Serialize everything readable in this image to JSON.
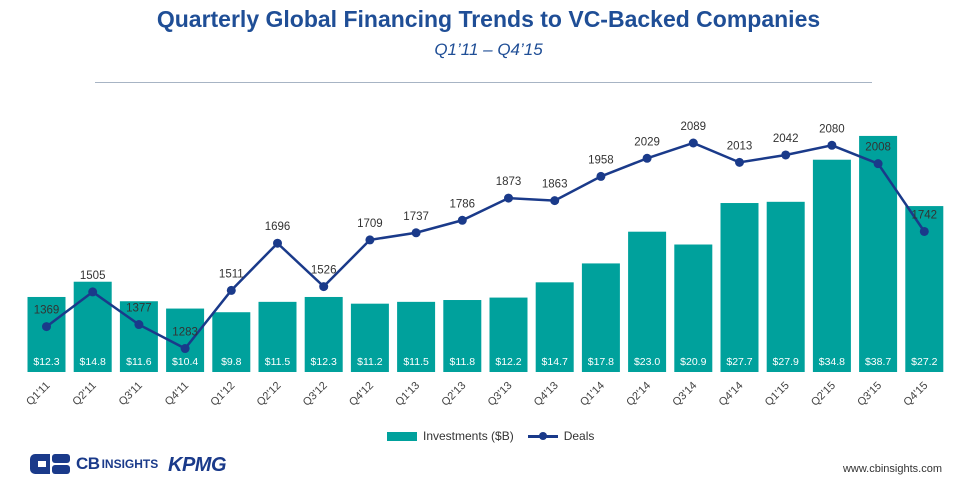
{
  "header": {
    "title": "Quarterly Global Financing Trends to VC-Backed Companies",
    "subtitle": "Q1’11 – Q4’15"
  },
  "chart_data": {
    "type": "bar",
    "title": "Quarterly Global Financing Trends to VC-Backed Companies",
    "subtitle": "Q1’11 – Q4’15",
    "categories": [
      "Q1'11",
      "Q2'11",
      "Q3'11",
      "Q4'11",
      "Q1'12",
      "Q2'12",
      "Q3'12",
      "Q4'12",
      "Q1'13",
      "Q2'13",
      "Q3'13",
      "Q4'13",
      "Q1'14",
      "Q2'14",
      "Q3'14",
      "Q4'14",
      "Q1'15",
      "Q2'15",
      "Q3'15",
      "Q4'15"
    ],
    "series": [
      {
        "name": "Investments ($B)",
        "type": "bar",
        "values": [
          12.3,
          14.8,
          11.6,
          10.4,
          9.8,
          11.5,
          12.3,
          11.2,
          11.5,
          11.8,
          12.2,
          14.7,
          17.8,
          23.0,
          20.9,
          27.7,
          27.9,
          34.8,
          38.7,
          27.2
        ],
        "labels": [
          "$12.3",
          "$14.8",
          "$11.6",
          "$10.4",
          "$9.8",
          "$11.5",
          "$12.3",
          "$11.2",
          "$11.5",
          "$11.8",
          "$12.2",
          "$14.7",
          "$17.8",
          "$23.0",
          "$20.9",
          "$27.7",
          "$27.9",
          "$34.8",
          "$38.7",
          "$27.2"
        ]
      },
      {
        "name": "Deals",
        "type": "line",
        "values": [
          1369,
          1505,
          1377,
          1283,
          1511,
          1696,
          1526,
          1709,
          1737,
          1786,
          1873,
          1863,
          1958,
          2029,
          2089,
          2013,
          2042,
          2080,
          2008,
          1742
        ]
      }
    ],
    "legend": [
      "Investments ($B)",
      "Deals"
    ],
    "legend_position": "bottom-center",
    "bar_ylim": [
      0,
      40
    ],
    "line_ylim": [
      0,
      2300
    ],
    "colors": {
      "bars": "#00a19c",
      "line": "#1a3a8a",
      "title": "#1f4e96"
    }
  },
  "footer": {
    "cb_brand": "CB",
    "cb_brand_rest": "INSIGHTS",
    "partner": "KPMG",
    "url": "www.cbinsights.com"
  }
}
